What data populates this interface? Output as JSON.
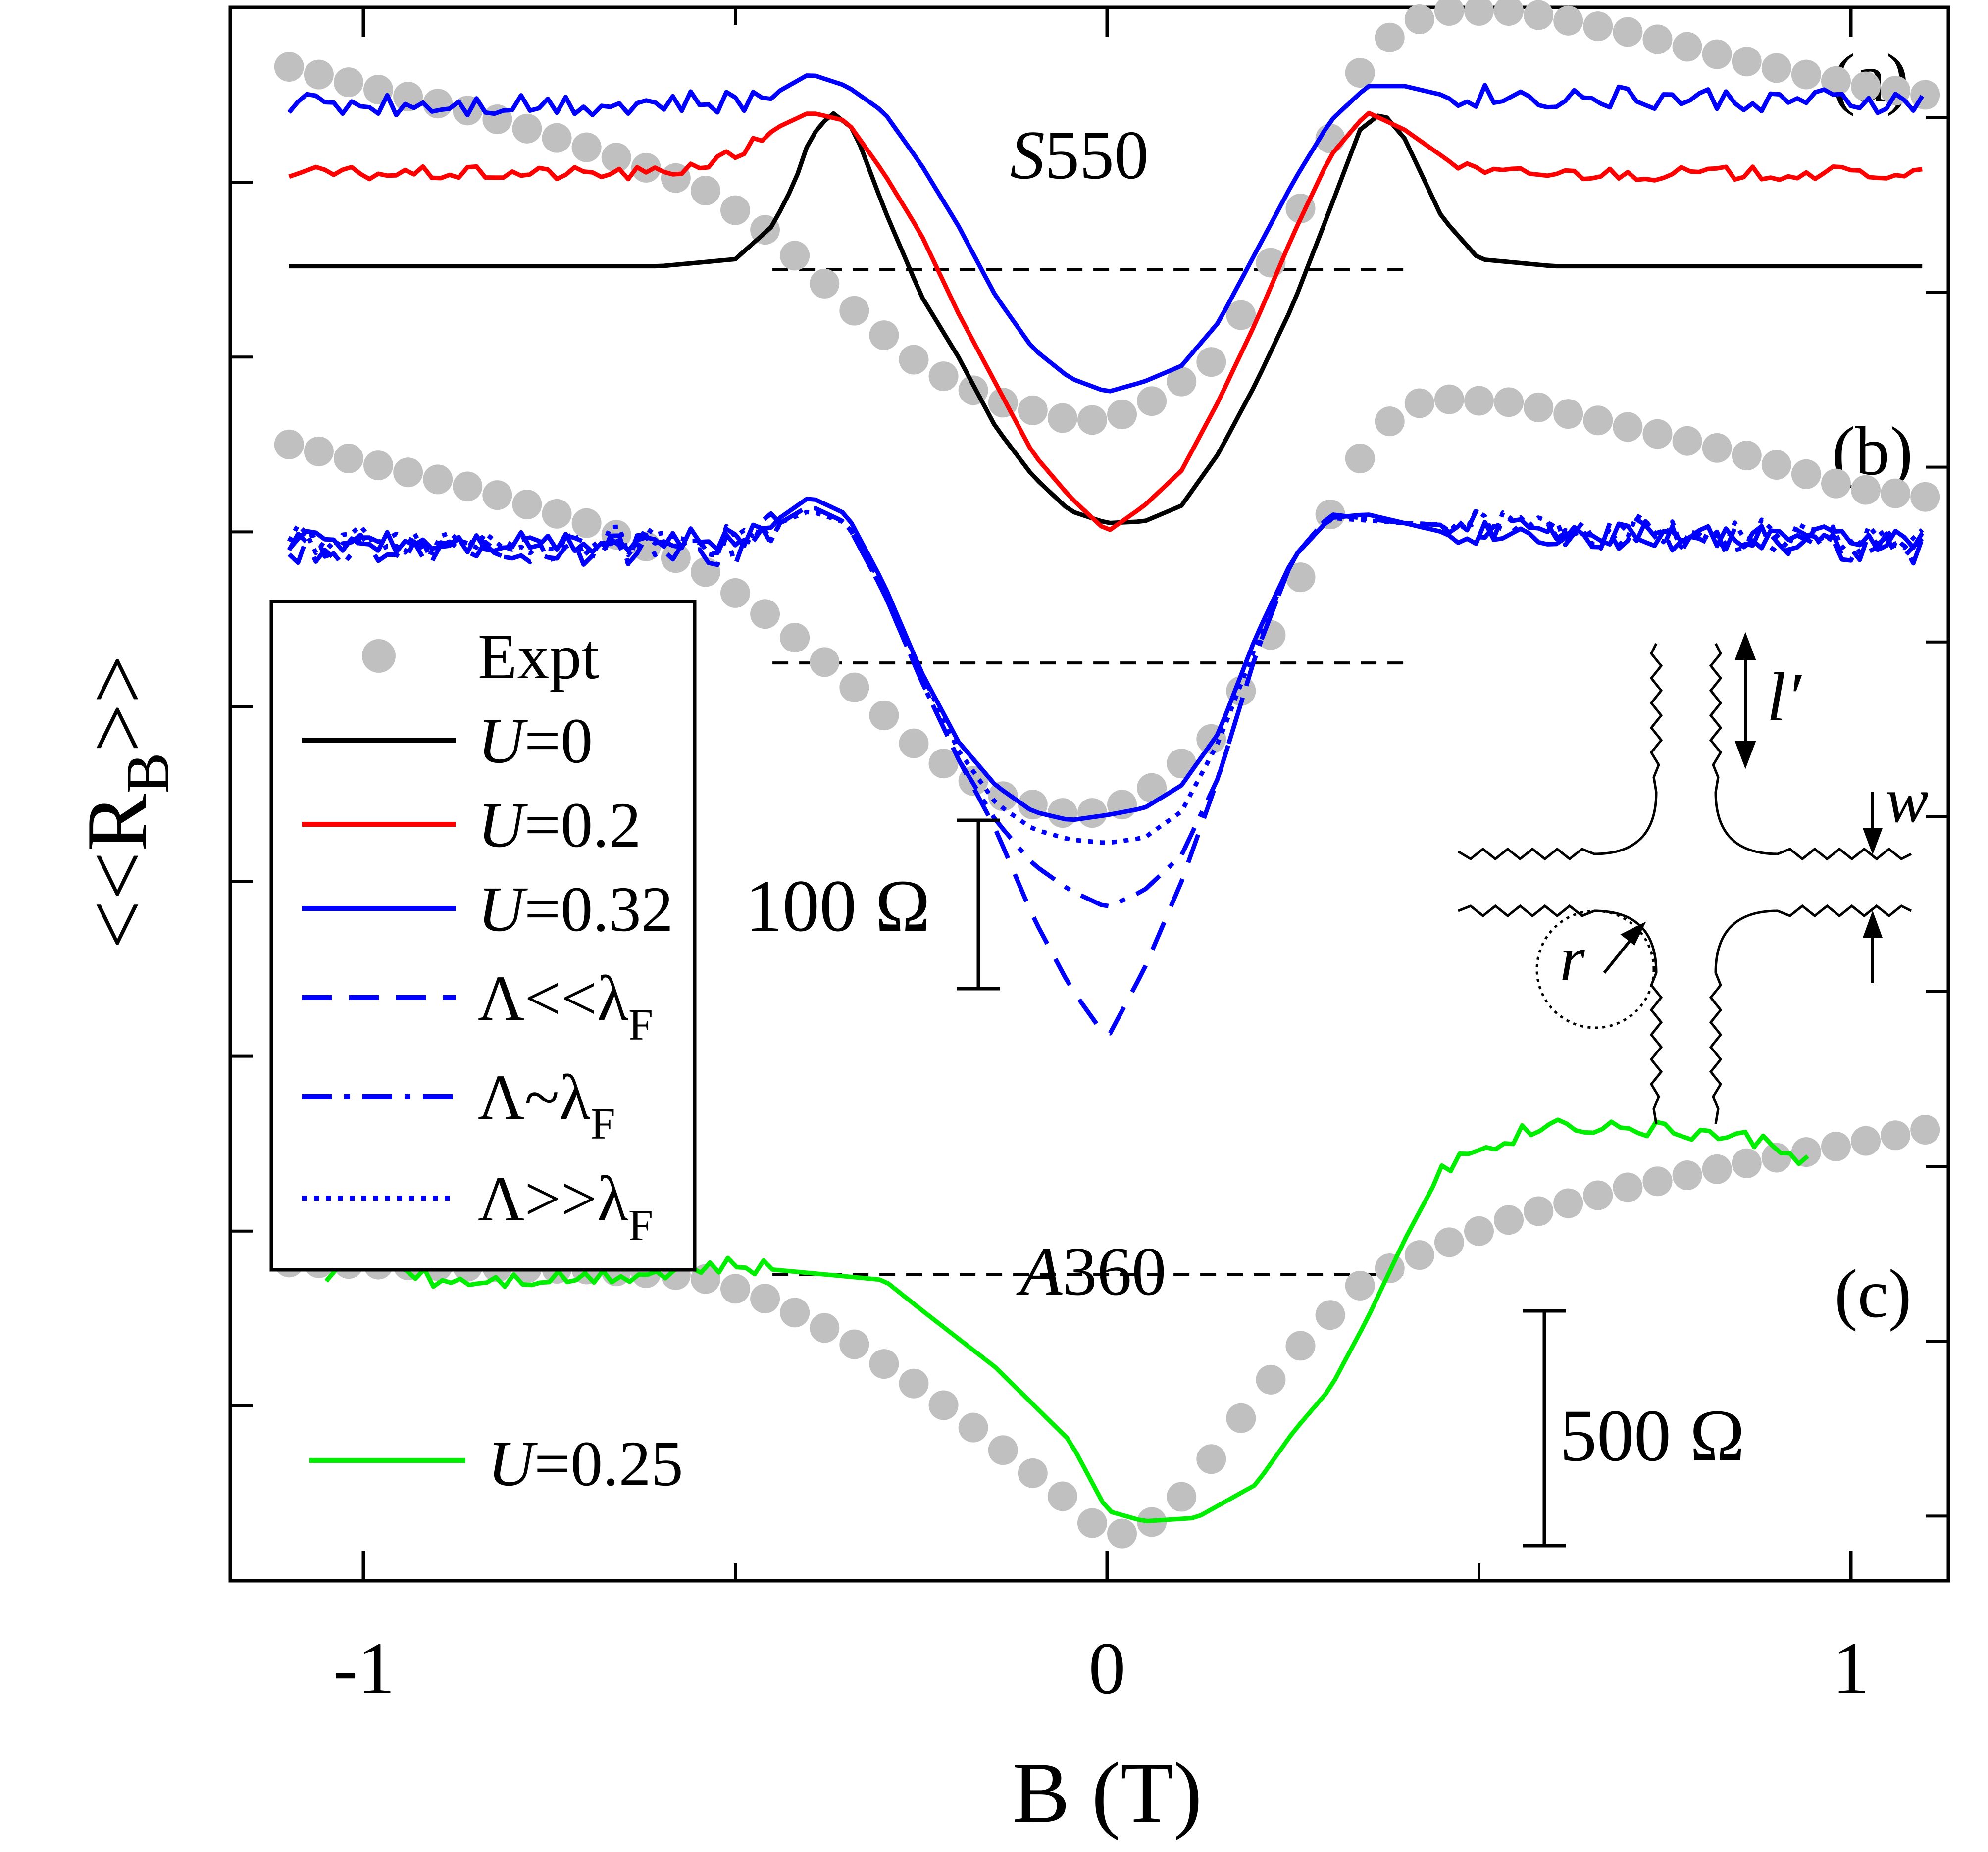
{
  "chart_data": {
    "type": "line",
    "xlabel": "B (T)",
    "ylabel_parts": {
      "open": "<<R",
      "sub": "B",
      "close": ">>"
    },
    "x_ticks": [
      {
        "value": -1,
        "label": "-1"
      },
      {
        "value": 0,
        "label": "0"
      },
      {
        "value": 1,
        "label": "1"
      }
    ],
    "xlim": [
      -1.1,
      1.12
    ],
    "ylim_frame": [
      0,
      9
    ],
    "panel_labels": {
      "a": "(a)",
      "b": "(b)",
      "c": "(c)"
    },
    "sample_labels": {
      "a_italic": "S",
      "a_rest": "550",
      "c_italic": "A",
      "c_rest": "360"
    },
    "scale_bars": {
      "bc": "100 Ω",
      "c": "500 Ω"
    },
    "legend": [
      {
        "key": "expt",
        "label": "Expt",
        "style": "marker"
      },
      {
        "key": "u0",
        "label_italic": "U",
        "label_rest": "=0",
        "color": "#000000",
        "dash": "solid"
      },
      {
        "key": "u02",
        "label_italic": "U",
        "label_rest": "=0.2",
        "color": "#ff0000",
        "dash": "solid"
      },
      {
        "key": "u032",
        "label_italic": "U",
        "label_rest": "=0.32",
        "color": "#0000ff",
        "dash": "solid"
      },
      {
        "key": "lam_lt",
        "label_main": "Λ<<λ",
        "label_sub": "F",
        "color": "#0000ff",
        "dash": "dashed"
      },
      {
        "key": "lam_sim",
        "label_main": "Λ~λ",
        "label_sub": "F",
        "color": "#0000ff",
        "dash": "dashdot"
      },
      {
        "key": "lam_gt",
        "label_main": "Λ>>λ",
        "label_sub": "F",
        "color": "#0000ff",
        "dash": "dotted"
      }
    ],
    "legend_c": {
      "label_italic": "U",
      "label_rest": "=0.25",
      "color": "#00ee00"
    },
    "inset_labels": {
      "lprime": "l′",
      "w": "w",
      "r": "r"
    },
    "colors": {
      "expt": "#c0c0c0",
      "u0": "#000000",
      "u02": "#ff0000",
      "u032": "#0000ff",
      "u025": "#00ee00",
      "dashline": "#000000"
    },
    "panels": {
      "a": {
        "expt": [
          [
            -1.1,
            8.66
          ],
          [
            -1.0,
            8.55
          ],
          [
            -0.85,
            8.4
          ],
          [
            -0.7,
            8.2
          ],
          [
            -0.55,
            7.98
          ],
          [
            -0.45,
            7.7
          ],
          [
            -0.35,
            7.3
          ],
          [
            -0.25,
            6.95
          ],
          [
            -0.15,
            6.75
          ],
          [
            -0.05,
            6.64
          ],
          [
            0.0,
            6.64
          ],
          [
            0.05,
            6.72
          ],
          [
            0.15,
            7.0
          ],
          [
            0.2,
            7.4
          ],
          [
            0.25,
            7.75
          ],
          [
            0.3,
            8.25
          ],
          [
            0.35,
            8.72
          ],
          [
            0.4,
            8.9
          ],
          [
            0.45,
            8.98
          ],
          [
            0.55,
            8.98
          ],
          [
            0.7,
            8.86
          ],
          [
            0.85,
            8.7
          ],
          [
            1.0,
            8.56
          ],
          [
            1.1,
            8.5
          ]
        ],
        "u0": [
          [
            -1.1,
            7.52
          ],
          [
            -0.6,
            7.52
          ],
          [
            -0.5,
            7.56
          ],
          [
            -0.45,
            7.75
          ],
          [
            -0.42,
            8.0
          ],
          [
            -0.4,
            8.25
          ],
          [
            -0.37,
            8.4
          ],
          [
            -0.34,
            8.3
          ],
          [
            -0.3,
            7.85
          ],
          [
            -0.25,
            7.35
          ],
          [
            -0.2,
            7.0
          ],
          [
            -0.15,
            6.6
          ],
          [
            -0.1,
            6.32
          ],
          [
            -0.05,
            6.12
          ],
          [
            0.0,
            6.05
          ],
          [
            0.05,
            6.06
          ],
          [
            0.1,
            6.15
          ],
          [
            0.15,
            6.45
          ],
          [
            0.2,
            6.85
          ],
          [
            0.25,
            7.3
          ],
          [
            0.3,
            7.85
          ],
          [
            0.34,
            8.3
          ],
          [
            0.37,
            8.4
          ],
          [
            0.4,
            8.25
          ],
          [
            0.45,
            7.8
          ],
          [
            0.5,
            7.56
          ],
          [
            0.6,
            7.52
          ],
          [
            1.1,
            7.52
          ]
        ],
        "u02": [
          [
            -1.1,
            8.05
          ],
          [
            -0.6,
            8.05
          ],
          [
            -0.5,
            8.15
          ],
          [
            -0.45,
            8.3
          ],
          [
            -0.4,
            8.4
          ],
          [
            -0.35,
            8.35
          ],
          [
            -0.3,
            8.05
          ],
          [
            -0.25,
            7.7
          ],
          [
            -0.2,
            7.25
          ],
          [
            -0.15,
            6.85
          ],
          [
            -0.1,
            6.45
          ],
          [
            -0.05,
            6.2
          ],
          [
            0.0,
            6.0
          ],
          [
            0.05,
            6.15
          ],
          [
            0.1,
            6.35
          ],
          [
            0.15,
            6.75
          ],
          [
            0.2,
            7.2
          ],
          [
            0.25,
            7.7
          ],
          [
            0.3,
            8.15
          ],
          [
            0.35,
            8.4
          ],
          [
            0.4,
            8.3
          ],
          [
            0.45,
            8.15
          ],
          [
            0.5,
            8.05
          ],
          [
            1.1,
            8.05
          ]
        ],
        "u032": [
          [
            -1.1,
            8.45
          ],
          [
            -0.5,
            8.45
          ],
          [
            -0.45,
            8.5
          ],
          [
            -0.4,
            8.62
          ],
          [
            -0.35,
            8.55
          ],
          [
            -0.3,
            8.4
          ],
          [
            -0.25,
            8.1
          ],
          [
            -0.2,
            7.75
          ],
          [
            -0.15,
            7.35
          ],
          [
            -0.1,
            7.05
          ],
          [
            -0.05,
            6.88
          ],
          [
            0.0,
            6.8
          ],
          [
            0.05,
            6.86
          ],
          [
            0.1,
            6.95
          ],
          [
            0.15,
            7.2
          ],
          [
            0.2,
            7.6
          ],
          [
            0.25,
            8.0
          ],
          [
            0.3,
            8.35
          ],
          [
            0.35,
            8.55
          ],
          [
            0.4,
            8.55
          ],
          [
            0.45,
            8.5
          ],
          [
            1.1,
            8.45
          ]
        ],
        "dashline": {
          "x": [
            -0.45,
            0.4
          ],
          "y": 7.5
        }
      },
      "b": {
        "expt": [
          [
            -1.1,
            6.5
          ],
          [
            -1.0,
            6.4
          ],
          [
            -0.85,
            6.25
          ],
          [
            -0.7,
            6.05
          ],
          [
            -0.55,
            5.8
          ],
          [
            -0.45,
            5.5
          ],
          [
            -0.35,
            5.15
          ],
          [
            -0.25,
            4.75
          ],
          [
            -0.15,
            4.5
          ],
          [
            -0.05,
            4.38
          ],
          [
            0.0,
            4.4
          ],
          [
            0.05,
            4.5
          ],
          [
            0.15,
            4.85
          ],
          [
            0.2,
            5.25
          ],
          [
            0.25,
            5.65
          ],
          [
            0.3,
            6.1
          ],
          [
            0.35,
            6.5
          ],
          [
            0.4,
            6.72
          ],
          [
            0.45,
            6.76
          ],
          [
            0.55,
            6.74
          ],
          [
            0.7,
            6.6
          ],
          [
            0.85,
            6.45
          ],
          [
            1.0,
            6.25
          ],
          [
            1.1,
            6.2
          ]
        ],
        "u032": [
          [
            -1.1,
            5.95
          ],
          [
            -0.5,
            5.95
          ],
          [
            -0.45,
            6.05
          ],
          [
            -0.4,
            6.2
          ],
          [
            -0.35,
            6.1
          ],
          [
            -0.3,
            5.7
          ],
          [
            -0.25,
            5.2
          ],
          [
            -0.2,
            4.8
          ],
          [
            -0.15,
            4.55
          ],
          [
            -0.1,
            4.4
          ],
          [
            -0.05,
            4.35
          ],
          [
            0.0,
            4.38
          ],
          [
            0.05,
            4.42
          ],
          [
            0.1,
            4.55
          ],
          [
            0.15,
            4.85
          ],
          [
            0.2,
            5.4
          ],
          [
            0.25,
            5.85
          ],
          [
            0.3,
            6.08
          ],
          [
            0.35,
            6.1
          ],
          [
            0.45,
            6.0
          ],
          [
            1.1,
            5.95
          ]
        ],
        "lam_lt": [
          [
            -1.1,
            5.9
          ],
          [
            -0.5,
            5.9
          ],
          [
            -0.4,
            6.15
          ],
          [
            -0.35,
            6.05
          ],
          [
            -0.3,
            5.65
          ],
          [
            -0.25,
            5.15
          ],
          [
            -0.2,
            4.7
          ],
          [
            -0.15,
            4.3
          ],
          [
            -0.1,
            3.8
          ],
          [
            -0.05,
            3.4
          ],
          [
            0.0,
            3.1
          ],
          [
            0.05,
            3.5
          ],
          [
            0.1,
            4.0
          ],
          [
            0.15,
            4.6
          ],
          [
            0.2,
            5.3
          ],
          [
            0.25,
            5.85
          ],
          [
            0.3,
            6.1
          ],
          [
            0.4,
            6.05
          ],
          [
            1.1,
            5.9
          ]
        ],
        "lam_sim": [
          [
            -1.1,
            5.9
          ],
          [
            -0.5,
            5.9
          ],
          [
            -0.4,
            6.15
          ],
          [
            -0.35,
            6.05
          ],
          [
            -0.3,
            5.65
          ],
          [
            -0.25,
            5.15
          ],
          [
            -0.2,
            4.7
          ],
          [
            -0.15,
            4.35
          ],
          [
            -0.1,
            4.1
          ],
          [
            -0.05,
            3.95
          ],
          [
            0.0,
            3.85
          ],
          [
            0.05,
            3.95
          ],
          [
            0.1,
            4.15
          ],
          [
            0.15,
            4.6
          ],
          [
            0.2,
            5.3
          ],
          [
            0.25,
            5.85
          ],
          [
            0.3,
            6.1
          ],
          [
            0.4,
            6.05
          ],
          [
            1.1,
            5.9
          ]
        ],
        "lam_gt": [
          [
            -1.1,
            5.95
          ],
          [
            -0.5,
            5.95
          ],
          [
            -0.4,
            6.12
          ],
          [
            -0.35,
            6.05
          ],
          [
            -0.3,
            5.68
          ],
          [
            -0.25,
            5.2
          ],
          [
            -0.2,
            4.75
          ],
          [
            -0.15,
            4.45
          ],
          [
            -0.1,
            4.3
          ],
          [
            -0.05,
            4.24
          ],
          [
            0.0,
            4.22
          ],
          [
            0.05,
            4.25
          ],
          [
            0.1,
            4.4
          ],
          [
            0.15,
            4.8
          ],
          [
            0.2,
            5.35
          ],
          [
            0.25,
            5.85
          ],
          [
            0.3,
            6.08
          ],
          [
            0.4,
            6.05
          ],
          [
            1.1,
            5.95
          ]
        ],
        "dashline": {
          "x": [
            -0.45,
            0.4
          ],
          "y": 5.25
        }
      },
      "c": {
        "expt": [
          [
            -1.1,
            1.82
          ],
          [
            -0.9,
            1.8
          ],
          [
            -0.7,
            1.78
          ],
          [
            -0.55,
            1.74
          ],
          [
            -0.45,
            1.6
          ],
          [
            -0.35,
            1.38
          ],
          [
            -0.25,
            1.1
          ],
          [
            -0.15,
            0.78
          ],
          [
            -0.05,
            0.45
          ],
          [
            0.0,
            0.25
          ],
          [
            0.05,
            0.3
          ],
          [
            0.1,
            0.48
          ],
          [
            0.15,
            0.75
          ],
          [
            0.2,
            1.05
          ],
          [
            0.25,
            1.3
          ],
          [
            0.3,
            1.52
          ],
          [
            0.35,
            1.73
          ],
          [
            0.45,
            1.92
          ],
          [
            0.55,
            2.08
          ],
          [
            0.7,
            2.25
          ],
          [
            0.85,
            2.38
          ],
          [
            1.0,
            2.5
          ],
          [
            1.1,
            2.58
          ]
        ],
        "u025": [
          [
            -1.05,
            1.75
          ],
          [
            -0.98,
            1.85
          ],
          [
            -0.9,
            1.72
          ],
          [
            -0.7,
            1.74
          ],
          [
            -0.5,
            1.8
          ],
          [
            -0.3,
            1.72
          ],
          [
            -0.25,
            1.55
          ],
          [
            -0.15,
            1.22
          ],
          [
            -0.05,
            0.8
          ],
          [
            0.0,
            0.4
          ],
          [
            0.05,
            0.34
          ],
          [
            0.12,
            0.36
          ],
          [
            0.2,
            0.55
          ],
          [
            0.25,
            0.85
          ],
          [
            0.3,
            1.1
          ],
          [
            0.35,
            1.5
          ],
          [
            0.4,
            1.95
          ],
          [
            0.45,
            2.35
          ],
          [
            0.5,
            2.48
          ],
          [
            0.6,
            2.62
          ],
          [
            0.8,
            2.56
          ],
          [
            0.9,
            2.5
          ],
          [
            0.95,
            2.38
          ]
        ],
        "dashline": {
          "x": [
            -0.45,
            0.4
          ],
          "y": 1.75
        }
      }
    }
  }
}
